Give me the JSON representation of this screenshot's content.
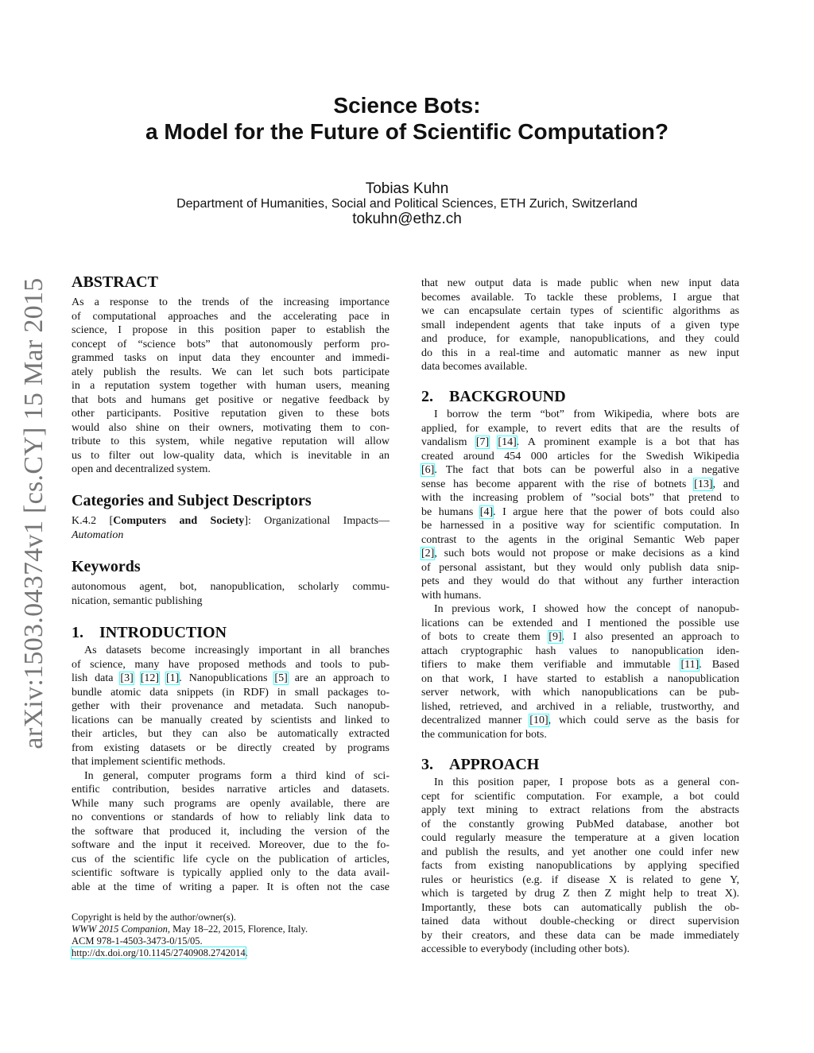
{
  "title": [
    "Science Bots:",
    "a Model for the Future of Scientific Computation?"
  ],
  "author": "Tobias Kuhn",
  "affiliation": "Department of Humanities, Social and Political Sciences, ETH Zurich, Switzerland",
  "email": "tokuhn@ethz.ch",
  "arxiv_stamp": "arXiv:1503.04374v1  [cs.CY]  15 Mar 2015",
  "left": {
    "abstract_heading": "ABSTRACT",
    "abstract": [
      {
        "indent": false,
        "cont": false,
        "lines": [
          "As a response to the trends of the increasing importance",
          "of computational approaches and the accelerating pace in",
          "science, I propose in this position paper to establish the",
          "concept of “science bots” that autonomously perform pro-",
          "grammed tasks on input data they encounter and immedi-",
          "ately publish the results. We can let such bots participate",
          "in a reputation system together with human users, meaning",
          "that bots and humans get positive or negative feedback by",
          "other participants. Positive reputation given to these bots",
          "would also shine on their owners, motivating them to con-",
          "tribute to this system, while negative reputation will allow",
          "us to filter out low-quality data, which is inevitable in an",
          "open and decentralized system."
        ]
      }
    ],
    "categories_heading": "Categories and Subject Descriptors",
    "categories": {
      "code": "K.4.2 [",
      "bold": "Computers and Society",
      "rest": "]: Organizational Impacts—",
      "italic": "Automation"
    },
    "keywords_heading": "Keywords",
    "keywords": [
      {
        "indent": false,
        "cont": false,
        "lines": [
          "autonomous agent, bot, nanopublication, scholarly commu-",
          "nication, semantic publishing"
        ]
      }
    ],
    "intro_number": "1.",
    "intro_heading": "INTRODUCTION",
    "intro": [
      {
        "indent": true,
        "cont": false,
        "lines": [
          "As datasets become increasingly important in all branches",
          "of science, many have proposed methods and tools to pub-",
          "lish data [3] [12] [1]. Nanopublications [5] are an approach to",
          "bundle atomic data snippets (in RDF) in small packages to-",
          "gether with their provenance and metadata. Such nanopub-",
          "lications can be manually created by scientists and linked to",
          "their articles, but they can also be automatically extracted",
          "from existing datasets or be directly created by programs",
          "that implement scientific methods."
        ]
      },
      {
        "indent": true,
        "cont": true,
        "lines": [
          "In general, computer programs form a third kind of sci-",
          "entific contribution, besides narrative articles and datasets.",
          "While many such programs are openly available, there are",
          "no conventions or standards of how to reliably link data to",
          "the software that produced it, including the version of the",
          "software and the input it received. Moreover, due to the fo-",
          "cus of the scientific life cycle on the publication of articles,",
          "scientific software is typically applied only to the data avail-",
          "able at the time of writing a paper. It is often not the case"
        ]
      }
    ],
    "footnote": {
      "copyright": "Copyright is held by the author/owner(s).",
      "venue_italic": "WWW 2015 Companion",
      "venue_rest": ", May 18–22, 2015, Florence, Italy.",
      "acm": "ACM 978-1-4503-3473-0/15/05.",
      "doi": "http://dx.doi.org/10.1145/2740908.2742014",
      "doi_period": "."
    }
  },
  "right": {
    "continuation": [
      {
        "indent": false,
        "cont": false,
        "lines": [
          "that new output data is made public when new input data",
          "becomes available. To tackle these problems, I argue that",
          "we can encapsulate certain types of scientific algorithms as",
          "small independent agents that take inputs of a given type",
          "and produce, for example, nanopublications, and they could",
          "do this in a real-time and automatic manner as new input",
          "data becomes available."
        ]
      }
    ],
    "background_number": "2.",
    "background_heading": "BACKGROUND",
    "background": [
      {
        "indent": true,
        "cont": false,
        "lines": [
          "I borrow the term “bot” from Wikipedia, where bots are",
          "applied, for example, to revert edits that are the results of",
          "vandalism [7] [14]. A prominent example is a bot that has",
          "created around 454 000 articles for the Swedish Wikipedia",
          "[6]. The fact that bots can be powerful also in a negative",
          "sense has become apparent with the rise of botnets [13], and",
          "with the increasing problem of ”social bots” that pretend to",
          "be humans [4]. I argue here that the power of bots could also",
          "be harnessed in a positive way for scientific computation. In",
          "contrast to the agents in the original Semantic Web paper",
          "[2], such bots would not propose or make decisions as a kind",
          "of personal assistant, but they would only publish data snip-",
          "pets and they would do that without any further interaction",
          "with humans."
        ]
      },
      {
        "indent": true,
        "cont": false,
        "lines": [
          "In previous work, I showed how the concept of nanopub-",
          "lications can be extended and I mentioned the possible use",
          "of bots to create them [9]. I also presented an approach to",
          "attach cryptographic hash values to nanopublication iden-",
          "tifiers to make them verifiable and immutable [11]. Based",
          "on that work, I have started to establish a nanopublication",
          "server network, with which nanopublications can be pub-",
          "lished, retrieved, and archived in a reliable, trustworthy, and",
          "decentralized manner [10], which could serve as the basis for",
          "the communication for bots."
        ]
      }
    ],
    "approach_number": "3.",
    "approach_heading": "APPROACH",
    "approach": [
      {
        "indent": true,
        "cont": false,
        "lines": [
          "In this position paper, I propose bots as a general con-",
          "cept for scientific computation. For example, a bot could",
          "apply text mining to extract relations from the abstracts",
          "of the constantly growing PubMed database, another bot",
          "could regularly measure the temperature at a given location",
          "and publish the results, and yet another one could infer new",
          "facts from existing nanopublications by applying specified",
          "rules or heuristics (e.g. if disease X is related to gene Y,",
          "which is targeted by drug Z then Z might help to treat X).",
          "Importantly, these bots can automatically publish the ob-",
          "tained data without double-checking or direct supervision",
          "by their creators, and these data can be made immediately",
          "accessible to everybody (including other bots)."
        ]
      }
    ]
  }
}
